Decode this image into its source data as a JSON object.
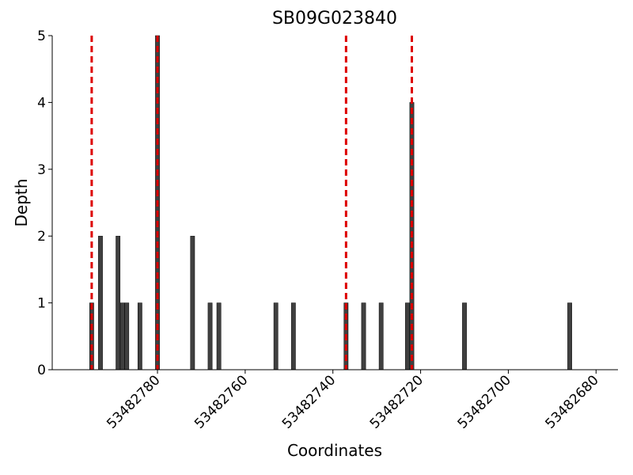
{
  "chart_data": {
    "type": "bar",
    "title": "SB09G023840",
    "x_label": "Coordinates",
    "y_label": "Depth",
    "x": [
      53482795,
      53482793,
      53482789,
      53482788,
      53482787,
      53482784,
      53482780,
      53482772,
      53482768,
      53482766,
      53482753,
      53482749,
      53482737,
      53482733,
      53482729,
      53482723,
      53482722,
      53482710,
      53482686
    ],
    "values": [
      1,
      2,
      2,
      1,
      1,
      1,
      5,
      2,
      1,
      1,
      1,
      1,
      1,
      1,
      1,
      1,
      4,
      1,
      1
    ],
    "color": "#404040",
    "vlines": [
      53482795,
      53482780,
      53482737,
      53482722
    ],
    "vline_color": "#dd0000",
    "vline_style": "dashed",
    "xlim": [
      53482804,
      53482675
    ],
    "xticks": [
      53482780,
      53482760,
      53482740,
      53482720,
      53482700,
      53482680
    ],
    "ylim": [
      0,
      5
    ],
    "yticks": [
      0,
      1,
      2,
      3,
      4,
      5
    ]
  }
}
